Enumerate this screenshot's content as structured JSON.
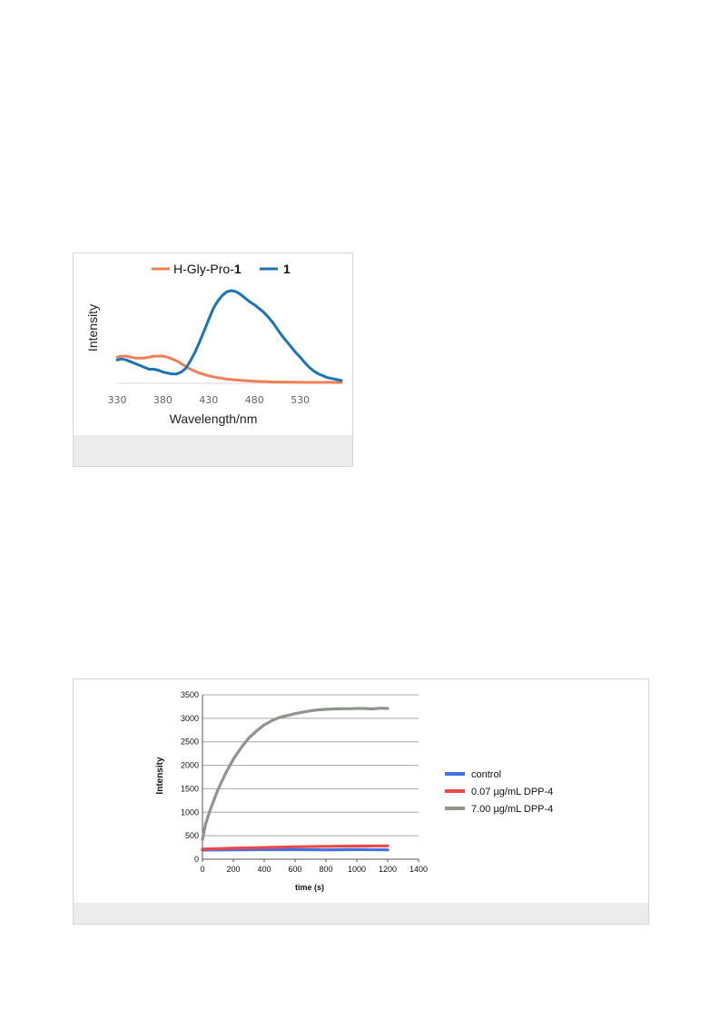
{
  "chart_data": [
    {
      "type": "line",
      "xlabel": "Wavelength/nm",
      "ylabel": "Intensity",
      "xlim": [
        330,
        575
      ],
      "ylim": [
        0,
        1
      ],
      "y_ticks_shown": false,
      "x_ticks": [
        "330",
        "380",
        "430",
        "480",
        "530"
      ],
      "legend": {
        "placement": "top",
        "entries": [
          {
            "prefix": "H-Gly-Pro-",
            "bold": "1"
          },
          {
            "prefix": "",
            "bold": "1"
          }
        ]
      },
      "colors": {
        "series0": "#f07f55",
        "series1": "#1a74b8"
      },
      "series": [
        {
          "name": "H-Gly-Pro-1",
          "x": [
            330,
            335,
            340,
            345,
            350,
            355,
            360,
            365,
            370,
            375,
            380,
            385,
            390,
            395,
            400,
            405,
            410,
            420,
            430,
            440,
            450,
            460,
            470,
            480,
            490,
            500,
            520,
            540,
            560,
            575
          ],
          "y": [
            0.28,
            0.29,
            0.29,
            0.28,
            0.27,
            0.27,
            0.27,
            0.28,
            0.29,
            0.29,
            0.29,
            0.28,
            0.26,
            0.24,
            0.21,
            0.18,
            0.15,
            0.11,
            0.08,
            0.06,
            0.045,
            0.035,
            0.028,
            0.022,
            0.018,
            0.015,
            0.012,
            0.01,
            0.01,
            0.01
          ]
        },
        {
          "name": "1",
          "x": [
            330,
            335,
            340,
            345,
            350,
            355,
            360,
            365,
            370,
            375,
            380,
            385,
            390,
            395,
            400,
            405,
            410,
            415,
            420,
            425,
            430,
            435,
            440,
            445,
            450,
            455,
            460,
            465,
            470,
            475,
            480,
            485,
            490,
            495,
            500,
            505,
            510,
            515,
            520,
            525,
            530,
            535,
            540,
            545,
            550,
            555,
            560,
            565,
            570,
            575
          ],
          "y": [
            0.25,
            0.26,
            0.25,
            0.23,
            0.21,
            0.19,
            0.17,
            0.15,
            0.15,
            0.14,
            0.12,
            0.11,
            0.1,
            0.1,
            0.12,
            0.16,
            0.24,
            0.33,
            0.44,
            0.56,
            0.68,
            0.8,
            0.88,
            0.94,
            0.98,
            0.99,
            0.98,
            0.95,
            0.91,
            0.87,
            0.84,
            0.8,
            0.76,
            0.71,
            0.65,
            0.58,
            0.51,
            0.45,
            0.39,
            0.33,
            0.28,
            0.22,
            0.17,
            0.13,
            0.1,
            0.08,
            0.06,
            0.05,
            0.04,
            0.03
          ]
        }
      ]
    },
    {
      "type": "line",
      "xlabel": "time (s)",
      "ylabel": "Intensity",
      "xlim": [
        0,
        1400
      ],
      "ylim": [
        0,
        3500
      ],
      "grid": true,
      "x_ticks": [
        0,
        200,
        400,
        600,
        800,
        1000,
        1200,
        1400
      ],
      "y_ticks": [
        0,
        500,
        1000,
        1500,
        2000,
        2500,
        3000,
        3500
      ],
      "legend": {
        "placement": "right"
      },
      "colors": {
        "control": "#4472e4",
        "low": "#e84a4a",
        "high": "#8e958a"
      },
      "series": [
        {
          "name": "control",
          "x": [
            0,
            200,
            400,
            600,
            800,
            1000,
            1200
          ],
          "y": [
            195,
            200,
            205,
            205,
            200,
            205,
            200
          ]
        },
        {
          "name": "0.07 µg/mL DPP-4",
          "x": [
            0,
            200,
            400,
            600,
            800,
            1000,
            1200
          ],
          "y": [
            215,
            235,
            250,
            265,
            275,
            280,
            285
          ]
        },
        {
          "name": "7.00 µg/mL DPP-4",
          "x": [
            0,
            20,
            50,
            100,
            150,
            200,
            250,
            300,
            350,
            400,
            450,
            500,
            550,
            600,
            650,
            700,
            750,
            800,
            850,
            900,
            950,
            1000,
            1050,
            1100,
            1150,
            1200
          ],
          "y": [
            420,
            750,
            1050,
            1480,
            1830,
            2130,
            2370,
            2580,
            2730,
            2860,
            2950,
            3020,
            3060,
            3100,
            3130,
            3160,
            3180,
            3190,
            3200,
            3205,
            3205,
            3210,
            3210,
            3200,
            3215,
            3210
          ]
        }
      ]
    }
  ]
}
